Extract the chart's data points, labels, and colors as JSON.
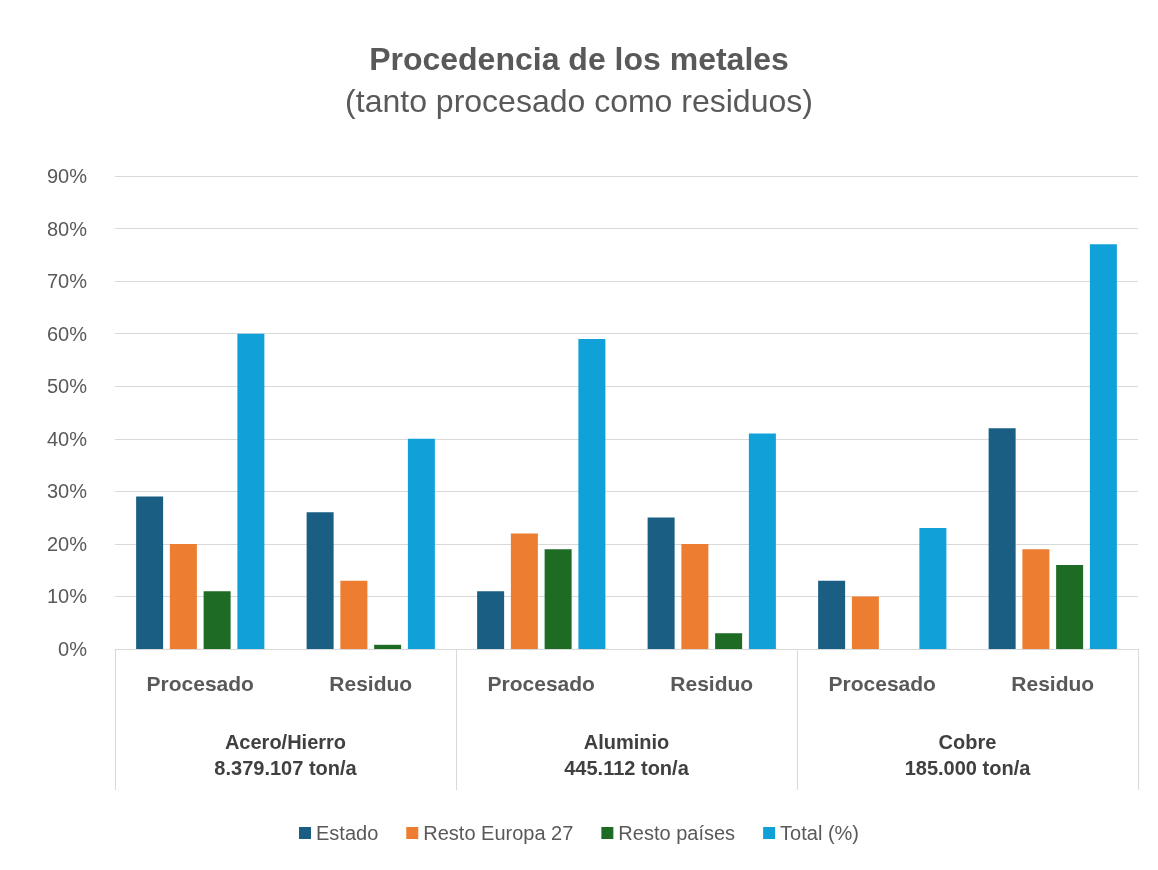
{
  "chart_data": {
    "type": "bar",
    "title": "Procedencia de los metales",
    "subtitle": "(tanto procesado como residuos)",
    "categories": [
      "Procesado",
      "Residuo",
      "Procesado",
      "Residuo",
      "Procesado",
      "Residuo"
    ],
    "annotations": [
      "Acero/Hierro\n8.379.107 ton/a",
      "Aluminio\n445.112 ton/a",
      "Cobre\n185.000 ton/a"
    ],
    "series": [
      {
        "name": "Estado",
        "color": "#1a5e84",
        "values": [
          29,
          26,
          11,
          25,
          13,
          42
        ]
      },
      {
        "name": "Resto Europa 27",
        "color": "#ed7d31",
        "values": [
          20,
          13,
          22,
          20,
          10,
          19
        ]
      },
      {
        "name": "Resto países",
        "color": "#1e6b24",
        "values": [
          11,
          0.8,
          19,
          3,
          0,
          16
        ]
      },
      {
        "name": "Total (%)",
        "color": "#10a1d8",
        "values": [
          60,
          40,
          59,
          41,
          23,
          77
        ]
      }
    ],
    "ylim": [
      0,
      90
    ],
    "yticks": [
      {
        "value": 0,
        "label": "0%"
      },
      {
        "value": 10,
        "label": "10%"
      },
      {
        "value": 20,
        "label": "20%"
      },
      {
        "value": 30,
        "label": "30%"
      },
      {
        "value": 40,
        "label": "40%"
      },
      {
        "value": 50,
        "label": "50%"
      },
      {
        "value": 60,
        "label": "60%"
      },
      {
        "value": 70,
        "label": "70%"
      },
      {
        "value": 80,
        "label": "80%"
      },
      {
        "value": 90,
        "label": "90%"
      }
    ],
    "grid": "y",
    "legend": "bottom"
  }
}
